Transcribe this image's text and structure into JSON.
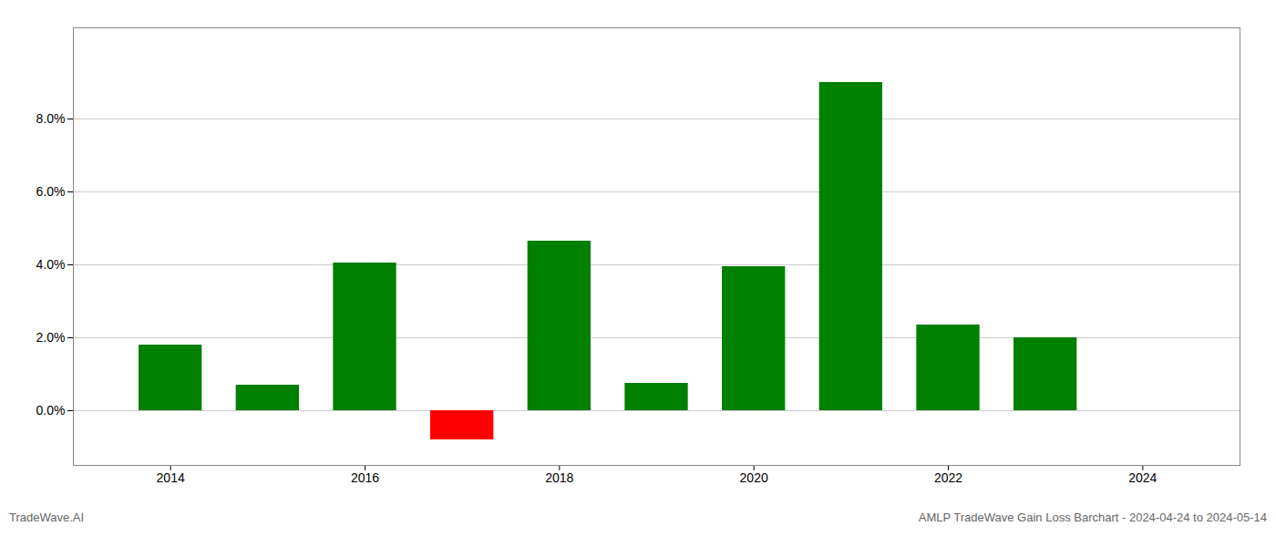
{
  "chart_data": {
    "type": "bar",
    "x": [
      2014,
      2015,
      2016,
      2017,
      2018,
      2019,
      2020,
      2021,
      2022,
      2023
    ],
    "values": [
      0.018,
      0.007,
      0.0405,
      -0.008,
      0.0465,
      0.0075,
      0.0395,
      0.09,
      0.0235,
      0.02
    ],
    "colors": [
      "#008000",
      "#008000",
      "#008000",
      "#ff0000",
      "#008000",
      "#008000",
      "#008000",
      "#008000",
      "#008000",
      "#008000"
    ],
    "xlim": [
      2013.0,
      2025.0
    ],
    "xticks": [
      2014,
      2016,
      2018,
      2020,
      2022,
      2024
    ],
    "ylim": [
      -0.015,
      0.105
    ],
    "yticks": [
      {
        "value": 0.0,
        "label": "0.0%"
      },
      {
        "value": 0.02,
        "label": "2.0%"
      },
      {
        "value": 0.04,
        "label": "4.0%"
      },
      {
        "value": 0.06,
        "label": "6.0%"
      },
      {
        "value": 0.08,
        "label": "8.0%"
      }
    ],
    "grid": true,
    "annotations": [
      "TradeWave.AI",
      "AMLP TradeWave Gain Loss Barchart - 2024-04-24 to 2024-05-14"
    ]
  }
}
